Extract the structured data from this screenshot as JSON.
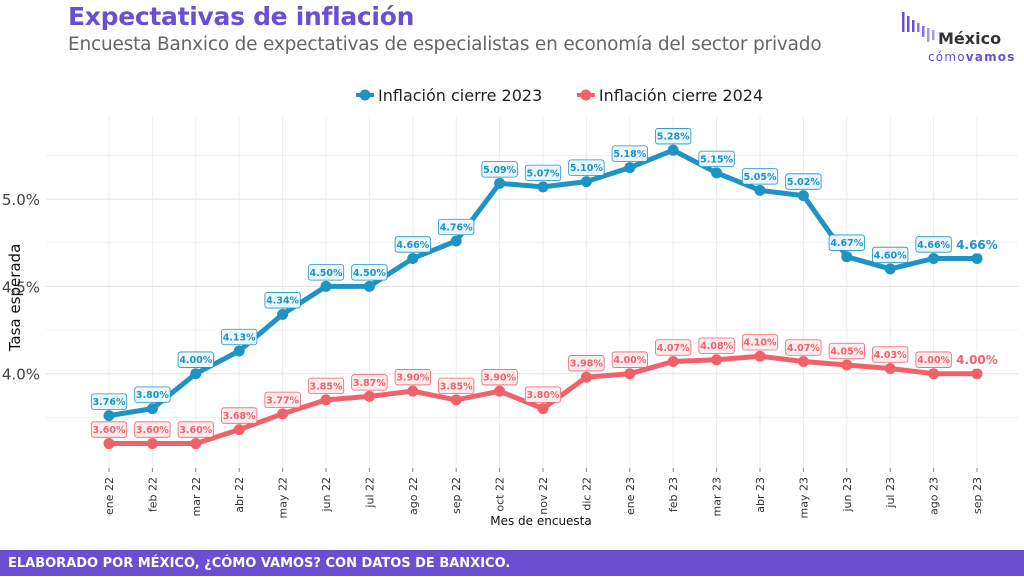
{
  "header": {
    "title": "Expectativas de inflación",
    "subtitle": "Encuesta Banxico de expectativas de especialistas en economía del sector privado"
  },
  "logo": {
    "name": "México",
    "tagline_light": "cómo",
    "tagline_bold": "vamos",
    "bar_color": "#6a4fd0"
  },
  "footer": {
    "text": "ELABORADO POR MÉXICO, ¿CÓMO VAMOS? CON DATOS DE BANXICO."
  },
  "chart_data": {
    "type": "line",
    "xlabel": "Mes de encuesta",
    "ylabel": "Tasa esperada",
    "ylim": [
      3.46,
      5.47
    ],
    "yticks": [
      4.0,
      4.5,
      5.0
    ],
    "ytick_labels": [
      "4.0%",
      "4.5%",
      "5.0%"
    ],
    "grid": true,
    "legend_position": "top-center",
    "categories": [
      "ene 22",
      "feb 22",
      "mar 22",
      "abr 22",
      "may 22",
      "jun 22",
      "jul 22",
      "ago 22",
      "sep 22",
      "oct 22",
      "nov 22",
      "dic 22",
      "ene 23",
      "feb 23",
      "mar 23",
      "abr 23",
      "may 23",
      "jun 23",
      "jul 23",
      "ago 23",
      "sep 23"
    ],
    "series": [
      {
        "name": "Inflación cierre 2023",
        "color": "#1f93c4",
        "label_bg": "#eaf6fb",
        "values": [
          3.76,
          3.8,
          4.0,
          4.13,
          4.34,
          4.5,
          4.5,
          4.66,
          4.76,
          5.09,
          5.07,
          5.1,
          5.18,
          5.28,
          5.15,
          5.05,
          5.02,
          4.67,
          4.6,
          4.66,
          4.66
        ],
        "labels": [
          "3.76%",
          "3.80%",
          "4.00%",
          "4.13%",
          "4.34%",
          "4.50%",
          "4.50%",
          "4.66%",
          "4.76%",
          "5.09%",
          "5.07%",
          "5.10%",
          "5.18%",
          "5.28%",
          "5.15%",
          "5.05%",
          "5.02%",
          "4.67%",
          "4.60%",
          "4.66%",
          "4.66%"
        ]
      },
      {
        "name": "Inflación cierre 2024",
        "color": "#f0626a",
        "label_bg": "#fdeced",
        "values": [
          3.6,
          3.6,
          3.6,
          3.68,
          3.77,
          3.85,
          3.87,
          3.9,
          3.85,
          3.9,
          3.8,
          3.98,
          4.0,
          4.07,
          4.08,
          4.1,
          4.07,
          4.05,
          4.03,
          4.0,
          4.0
        ],
        "labels": [
          "3.60%",
          "3.60%",
          "3.60%",
          "3.68%",
          "3.77%",
          "3.85%",
          "3.87%",
          "3.90%",
          "3.85%",
          "3.90%",
          "3.80%",
          "3.98%",
          "4.00%",
          "4.07%",
          "4.08%",
          "4.10%",
          "4.07%",
          "4.05%",
          "4.03%",
          "4.00%",
          "4.00%"
        ]
      }
    ]
  }
}
